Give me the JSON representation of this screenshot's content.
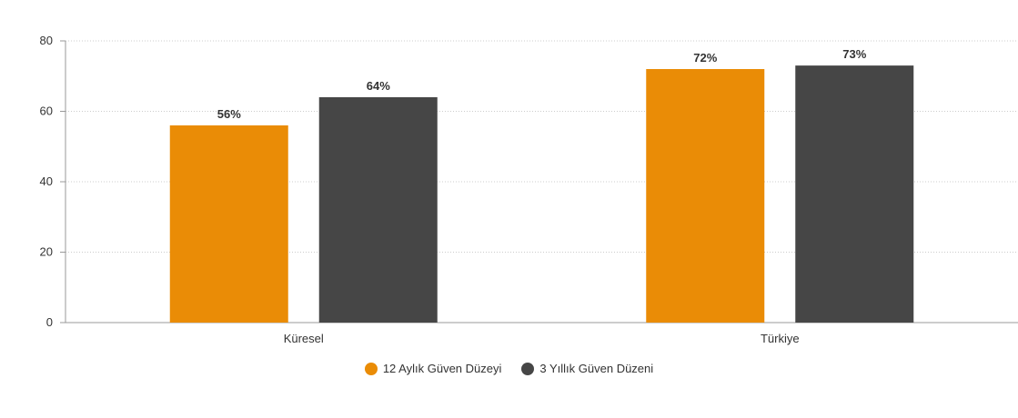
{
  "chart_data": {
    "type": "bar",
    "categories": [
      "Küresel",
      "Türkiye"
    ],
    "series": [
      {
        "name": "12 Aylık Güven Düzeyi",
        "values": [
          56,
          72
        ],
        "labels": [
          "56%",
          "72%"
        ],
        "color": "#ea8c06"
      },
      {
        "name": "3 Yıllık Güven Düzeni",
        "values": [
          64,
          73
        ],
        "labels": [
          "64%",
          "73%"
        ],
        "color": "#464646"
      }
    ],
    "y_ticks": [
      "0",
      "20",
      "40",
      "60",
      "80"
    ],
    "ylim": [
      0,
      80
    ],
    "grid": true,
    "legend": "bottom-center"
  }
}
